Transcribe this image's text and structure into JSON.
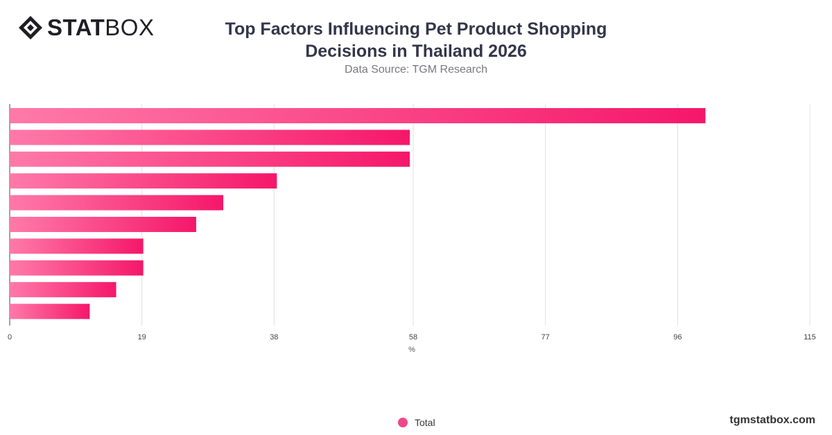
{
  "logo": {
    "part1": "STAT",
    "part2": "BOX"
  },
  "header": {
    "title": "Top Factors Influencing Pet Product Shopping Decisions in Thailand 2026",
    "subtitle": "Data Source: TGM Research"
  },
  "footer": {
    "site": "tgmstatbox.com"
  },
  "chart_data": {
    "type": "bar",
    "orientation": "horizontal",
    "title": "Top Factors Influencing Pet Product Shopping Decisions in Thailand 2026",
    "subtitle": "Data Source: TGM Research",
    "xlabel": "%",
    "ylabel": "",
    "xlim": [
      0,
      115
    ],
    "xticks": [
      0,
      19,
      38,
      58,
      77,
      96,
      115
    ],
    "grid": true,
    "legend_position": "bottom-center",
    "series": [
      {
        "name": "Total",
        "values": [
          100,
          57.5,
          57.5,
          38.4,
          30.7,
          26.8,
          19.2,
          19.2,
          15.3,
          11.5
        ]
      }
    ],
    "colors": {
      "bar_start": "#ff7aa8",
      "bar_end": "#f5176a",
      "grid": "#e0e0e0",
      "axis": "#444444"
    }
  }
}
